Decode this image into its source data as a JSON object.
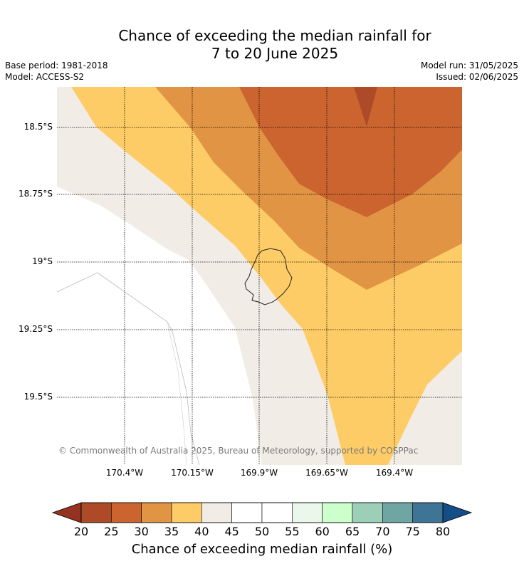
{
  "title_line1": "Chance of exceeding the median rainfall for",
  "title_line2": "7 to 20 June 2025",
  "base_period": "Base period: 1981-2018",
  "model": "Model: ACCESS-S2",
  "model_run": "Model run: 31/05/2025",
  "issued": "Issued: 02/06/2025",
  "copyright": "© Commonwealth of Australia 2025, Bureau of Meteorology, supported by COSPPac",
  "latitude_labels": [
    "18.5°S",
    "18.75°S",
    "19°S",
    "19.25°S",
    "19.5°S"
  ],
  "longitude_labels": [
    "170.4°W",
    "170.15°W",
    "169.9°W",
    "169.65°W",
    "169.4°W"
  ],
  "colorbar": {
    "title": "Chance of exceeding median rainfall (%)",
    "ticks": [
      "20",
      "25",
      "30",
      "35",
      "40",
      "45",
      "50",
      "55",
      "60",
      "65",
      "70",
      "75",
      "80"
    ],
    "colors": [
      "#ad4a28",
      "#cc6430",
      "#e09444",
      "#fecc66",
      "#f1ece6",
      "#ffffff",
      "#ffffff",
      "#eaf7ea",
      "#ccffcc",
      "#9dcfb8",
      "#6fa6a4",
      "#3e7596"
    ],
    "under_color": "#963220",
    "over_color": "#134f86"
  },
  "map_colors": {
    "band_20_25": "#ad4a28",
    "band_25_30": "#cc6430",
    "band_30_35": "#e09444",
    "band_35_40": "#fecc66",
    "band_40_45": "#f1ece6",
    "band_45_55": "#ffffff"
  }
}
